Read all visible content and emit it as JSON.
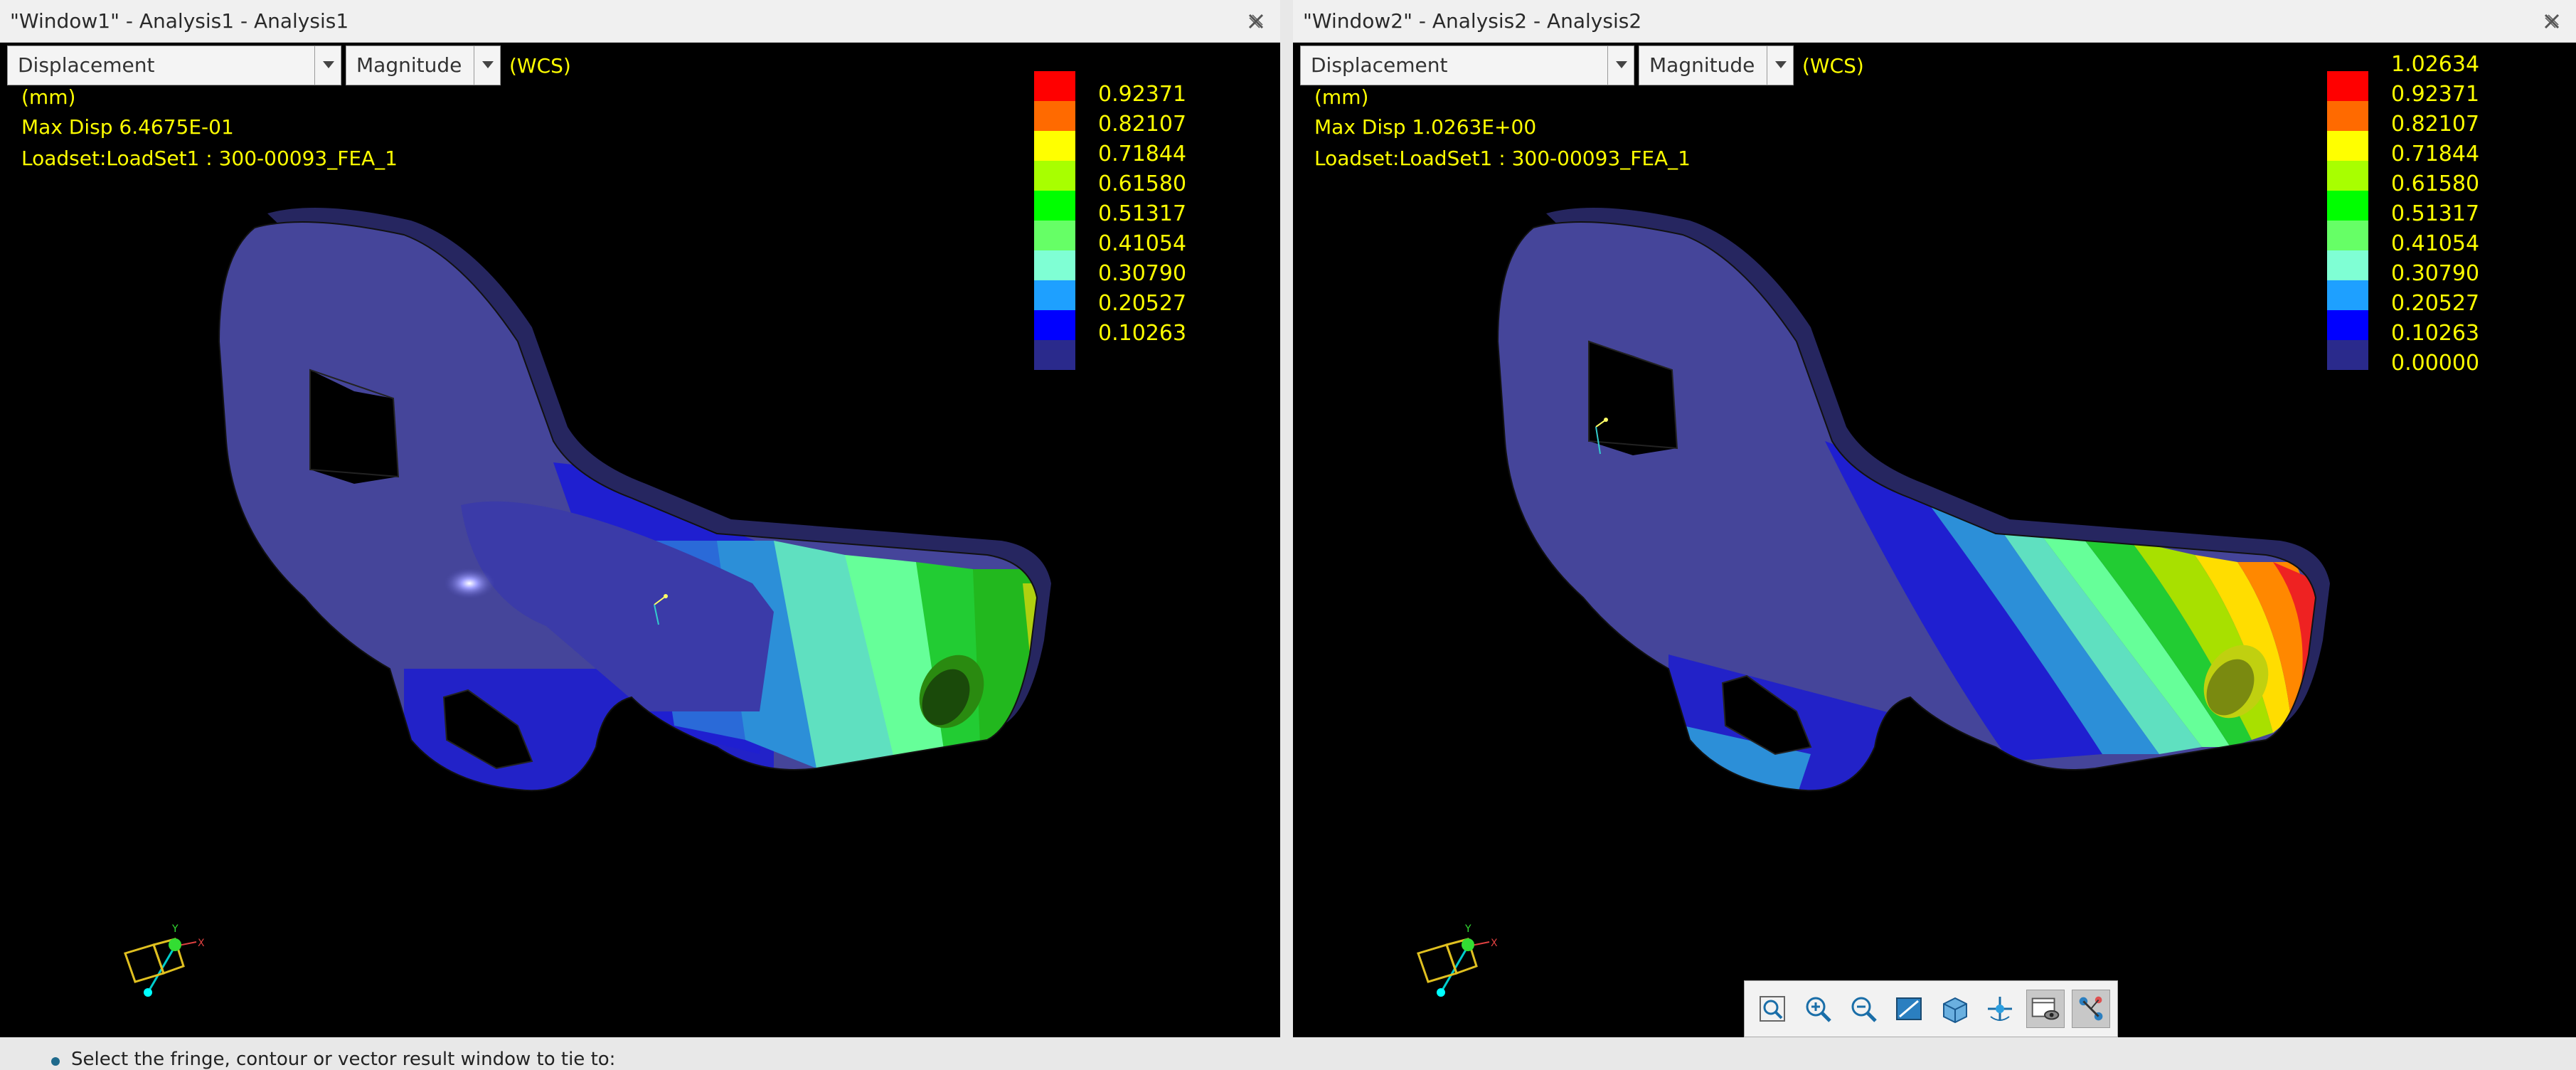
{
  "windows": [
    {
      "title": "\"Window1\" - Analysis1 - Analysis1",
      "quantity": "Displacement",
      "component": "Magnitude",
      "csys": "(WCS)",
      "units": "(mm)",
      "max_disp": "Max Disp  6.4675E-01",
      "loadset": "Loadset:LoadSet1 :  300-00093_FEA_1",
      "legend": [
        "0.92371",
        "0.82107",
        "0.71844",
        "0.61580",
        "0.51317",
        "0.41054",
        "0.30790",
        "0.20527",
        "0.10263",
        ""
      ],
      "legend_colors": [
        "#ff0000",
        "#ff6a00",
        "#ffff00",
        "#a8ff00",
        "#00ff00",
        "#66ff66",
        "#7fffd4",
        "#1ea0ff",
        "#0000ff",
        "#2a2a8c"
      ]
    },
    {
      "title": "\"Window2\" - Analysis2 - Analysis2",
      "quantity": "Displacement",
      "component": "Magnitude",
      "csys": "(WCS)",
      "units": "(mm)",
      "max_disp": "Max Disp  1.0263E+00",
      "loadset": "Loadset:LoadSet1 :  300-00093_FEA_1",
      "legend": [
        "1.02634",
        "0.92371",
        "0.82107",
        "0.71844",
        "0.61580",
        "0.51317",
        "0.41054",
        "0.30790",
        "0.20527",
        "0.10263",
        "0.00000"
      ],
      "legend_colors": [
        "#ff0000",
        "#ff6a00",
        "#ffff00",
        "#a8ff00",
        "#00ff00",
        "#66ff66",
        "#7fffd4",
        "#1ea0ff",
        "#0000ff",
        "#2a2a8c"
      ]
    }
  ],
  "triad_labels": {
    "x": "X",
    "y": "Y"
  },
  "toolbar": {
    "icons": [
      "refit-icon",
      "zoom-in-icon",
      "zoom-out-icon",
      "repaint-icon",
      "saved-views-icon",
      "spin-center-icon",
      "view-manager-icon",
      "tie-windows-icon"
    ]
  },
  "status": {
    "text": "Select the fringe, contour or vector result window to tie to:"
  }
}
